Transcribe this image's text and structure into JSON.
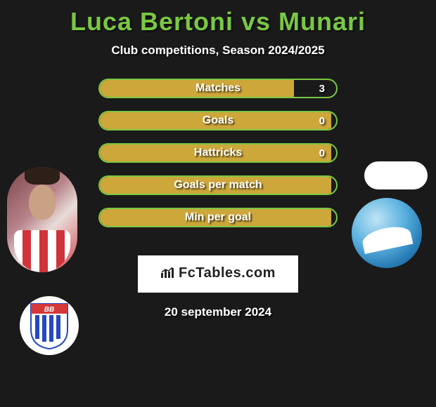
{
  "title": {
    "text": "Luca Bertoni vs Munari",
    "color": "#7ac843"
  },
  "subtitle": "Club competitions, Season 2024/2025",
  "colors": {
    "bar_border": "#7ac843",
    "bar_fill": "#cda73a",
    "background": "#1a1a1a"
  },
  "stats": [
    {
      "label": "Matches",
      "value": "3",
      "fill_pct": 82
    },
    {
      "label": "Goals",
      "value": "0",
      "fill_pct": 98
    },
    {
      "label": "Hattricks",
      "value": "0",
      "fill_pct": 98
    },
    {
      "label": "Goals per match",
      "value": "",
      "fill_pct": 98
    },
    {
      "label": "Min per goal",
      "value": "",
      "fill_pct": 98
    }
  ],
  "left": {
    "player_name": "luca-bertoni-photo",
    "club_name": "club-badge-bb",
    "club_colors": {
      "top": "#d43838",
      "stripes": "#2548c0",
      "white": "#ffffff"
    },
    "club_text": "BB"
  },
  "right": {
    "player_name": "munari-photo",
    "club_name": "club-badge-blue-wave"
  },
  "brand": "FcTables.com",
  "date": "20 september 2024"
}
